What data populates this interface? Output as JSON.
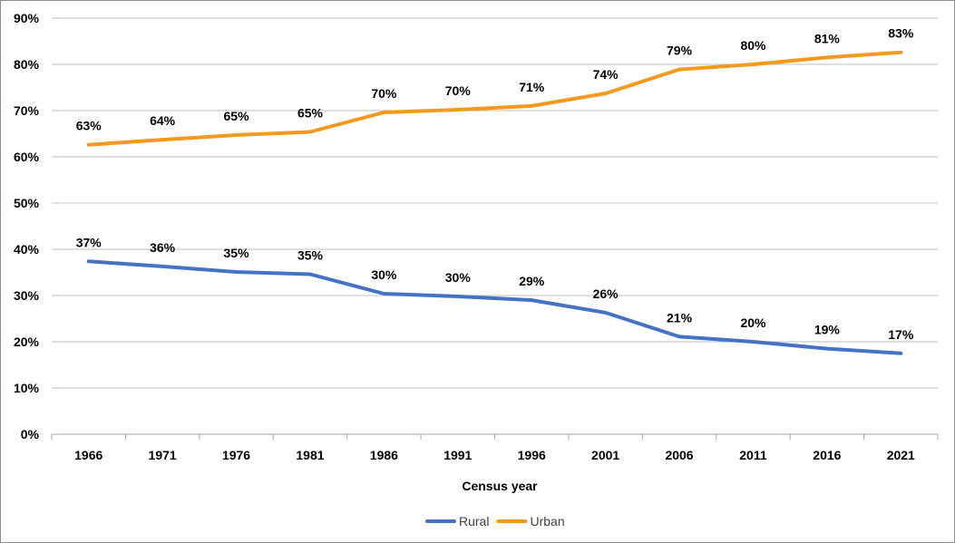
{
  "chart_data": {
    "type": "line",
    "title": "",
    "xlabel": "Census year",
    "ylabel": "",
    "categories": [
      "1966",
      "1971",
      "1976",
      "1981",
      "1986",
      "1991",
      "1996",
      "2001",
      "2006",
      "2011",
      "2016",
      "2021"
    ],
    "ylim": [
      0,
      90
    ],
    "yticks": [
      "0%",
      "10%",
      "20%",
      "30%",
      "40%",
      "50%",
      "60%",
      "70%",
      "80%",
      "90%"
    ],
    "grid": true,
    "legend_position": "bottom",
    "series": [
      {
        "name": "Rural",
        "color": "#4472C4",
        "values": [
          37.4,
          36.3,
          35.1,
          34.6,
          30.4,
          29.8,
          29.0,
          26.3,
          21.1,
          20.0,
          18.5,
          17.5
        ],
        "labels": [
          "37%",
          "36%",
          "35%",
          "35%",
          "30%",
          "30%",
          "29%",
          "26%",
          "21%",
          "20%",
          "19%",
          "17%"
        ]
      },
      {
        "name": "Urban",
        "color": "#F39A1E",
        "values": [
          62.6,
          63.7,
          64.7,
          65.4,
          69.6,
          70.2,
          71.0,
          73.7,
          78.9,
          80.0,
          81.5,
          82.6
        ],
        "labels": [
          "63%",
          "64%",
          "65%",
          "65%",
          "70%",
          "70%",
          "71%",
          "74%",
          "79%",
          "80%",
          "81%",
          "83%"
        ]
      }
    ]
  }
}
